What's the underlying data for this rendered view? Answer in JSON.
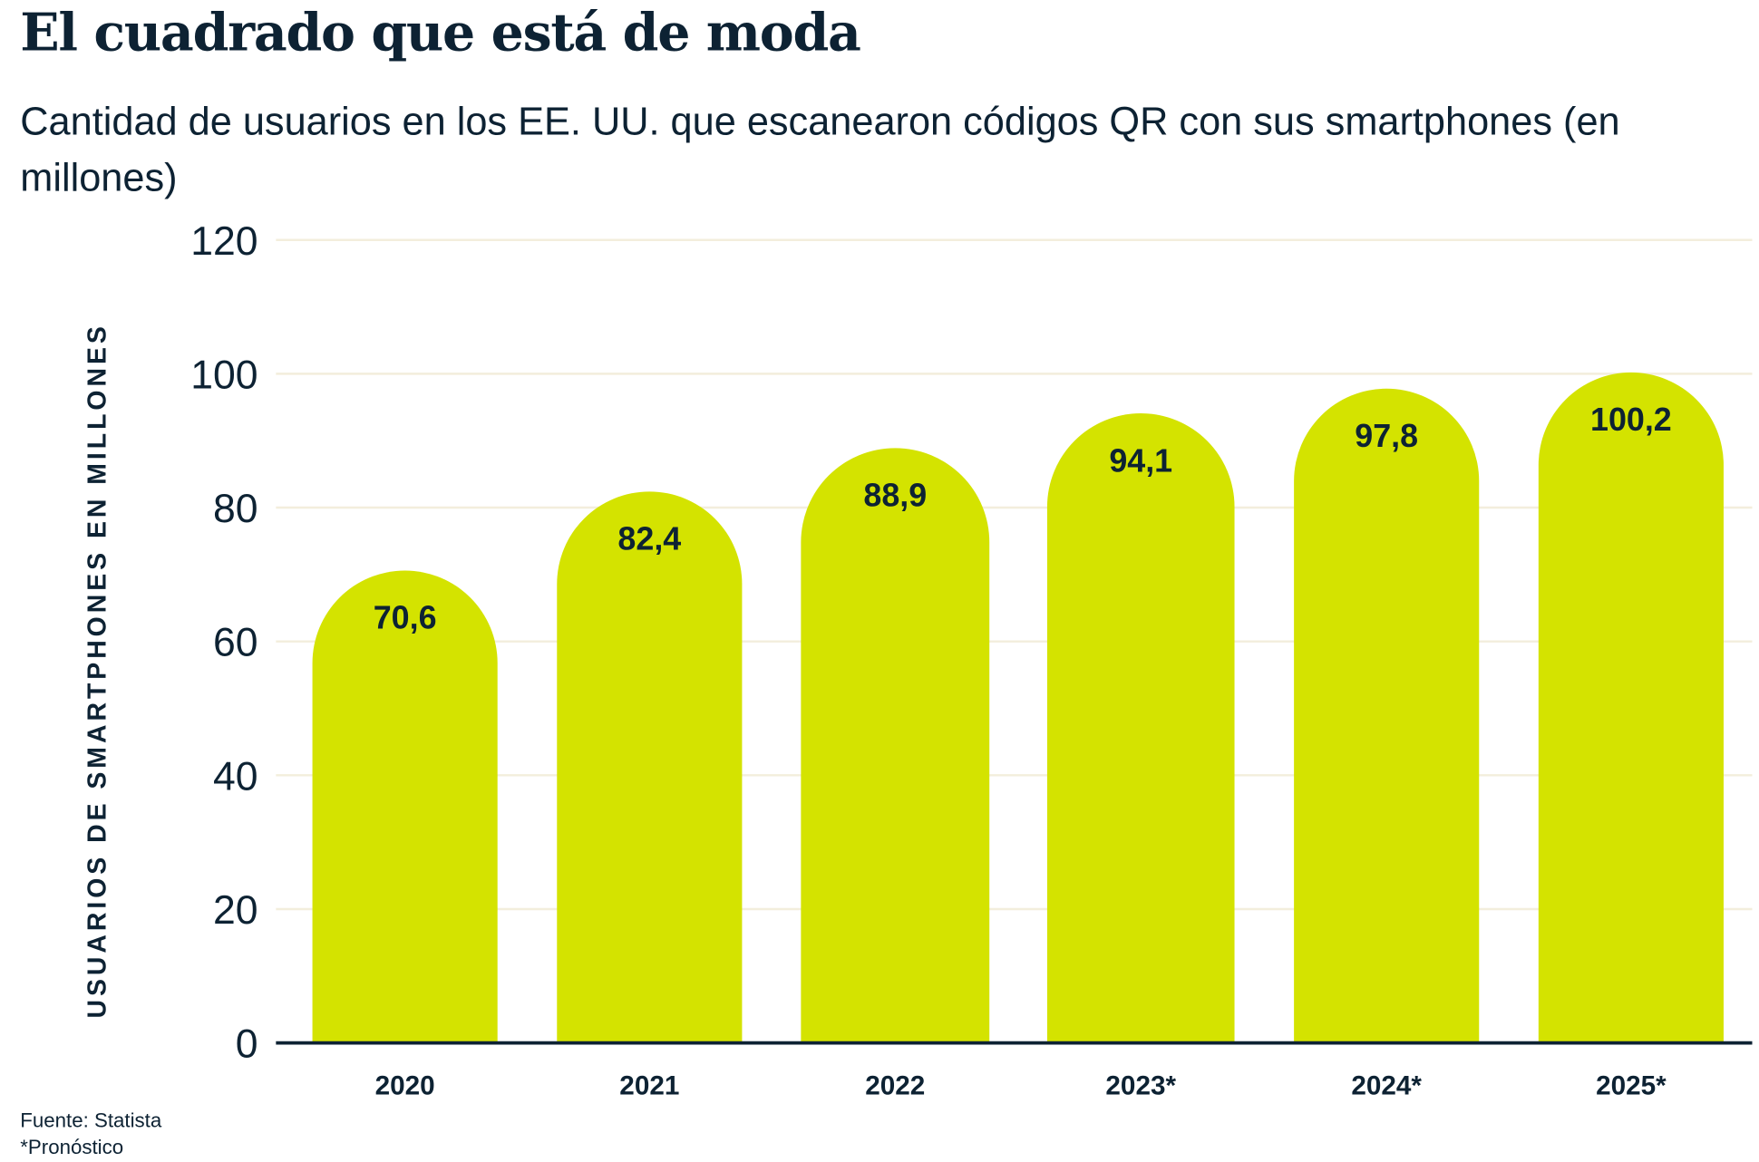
{
  "chart_data": {
    "type": "bar",
    "title": "El cuadrado que está de moda",
    "subtitle": "Cantidad de usuarios en los EE. UU. que escanearon códigos QR con sus smartphones (en millones)",
    "xlabel": "",
    "ylabel": "USUARIOS DE SMARTPHONES EN MILLONES",
    "categories": [
      "2020",
      "2021",
      "2022",
      "2023*",
      "2024*",
      "2025*"
    ],
    "values": [
      70.6,
      82.4,
      88.9,
      94.1,
      97.8,
      100.2
    ],
    "data_labels": [
      "70,6",
      "82,4",
      "88,9",
      "94,1",
      "97,8",
      "100,2"
    ],
    "ylim": [
      0,
      120
    ],
    "yticks": [
      0,
      20,
      40,
      60,
      80,
      100,
      120
    ],
    "grid": true,
    "bar_color": "#d4e300",
    "grid_color": "#f3eedc",
    "text_color": "#0d2233",
    "source": "Fuente: Statista",
    "note": "*Pronóstico"
  }
}
